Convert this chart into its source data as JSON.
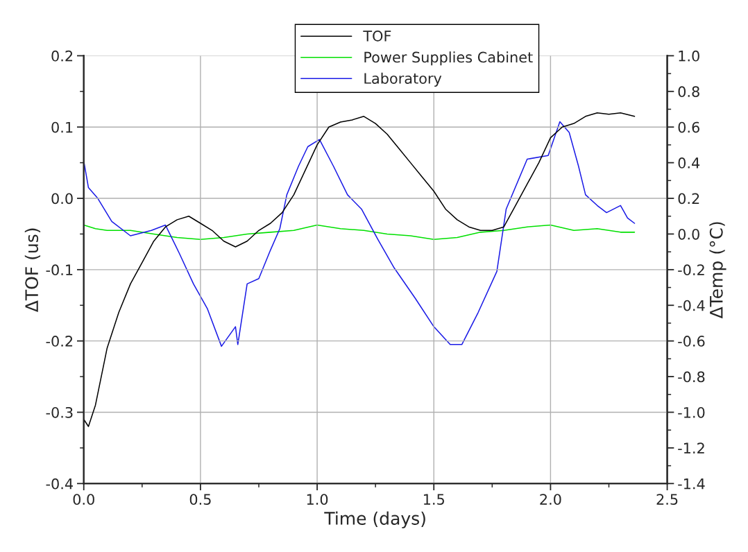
{
  "chart_data": {
    "type": "line",
    "xlabel": "Time (days)",
    "ylabel": "ΔTOF (us)",
    "y2label": "ΔTemp (°C)",
    "xlim": [
      0.0,
      2.5
    ],
    "xticks": [
      {
        "value": 0,
        "label": "0.0"
      },
      0.5,
      {
        "value": 1,
        "label": "1.0"
      },
      1.5,
      {
        "value": 2,
        "label": "2.0"
      },
      2.5
    ],
    "ylim": [
      -0.4,
      0.2
    ],
    "yticks": [
      -0.4,
      -0.3,
      -0.2,
      -0.1,
      {
        "value": 0,
        "label": "0.0"
      },
      0.1,
      0.2
    ],
    "y2lim": [
      -1.4,
      1.0
    ],
    "y2ticks": [
      -1.4,
      -1.2,
      {
        "value": -1,
        "label": "-1.0"
      },
      -0.8,
      -0.6,
      -0.4,
      -0.2,
      {
        "value": 0,
        "label": "0.0"
      },
      0.2,
      0.4,
      0.6,
      0.8,
      {
        "value": 1,
        "label": "1.0"
      }
    ],
    "grid": true,
    "legend": "top right",
    "marker": "none",
    "line_style": "solid",
    "series": [
      {
        "name": "TOF",
        "color": "#000000",
        "x": [
          0.0,
          0.02,
          0.05,
          0.1,
          0.15,
          0.2,
          0.25,
          0.3,
          0.35,
          0.4,
          0.45,
          0.5,
          0.55,
          0.6,
          0.65,
          0.7,
          0.75,
          0.8,
          0.85,
          0.9,
          0.95,
          1.0,
          1.05,
          1.1,
          1.15,
          1.2,
          1.25,
          1.3,
          1.35,
          1.4,
          1.45,
          1.5,
          1.55,
          1.6,
          1.65,
          1.7,
          1.75,
          1.8,
          1.85,
          1.9,
          1.95,
          2.0,
          2.05,
          2.1,
          2.15,
          2.2,
          2.25,
          2.3,
          2.36
        ],
        "values": [
          -0.31,
          -0.32,
          -0.29,
          -0.21,
          -0.16,
          -0.12,
          -0.09,
          -0.06,
          -0.04,
          -0.03,
          -0.025,
          -0.035,
          -0.045,
          -0.06,
          -0.068,
          -0.06,
          -0.045,
          -0.035,
          -0.02,
          0.005,
          0.04,
          0.075,
          0.1,
          0.107,
          0.11,
          0.115,
          0.105,
          0.09,
          0.07,
          0.05,
          0.03,
          0.01,
          -0.015,
          -0.03,
          -0.04,
          -0.045,
          -0.045,
          -0.04,
          -0.01,
          0.02,
          0.05,
          0.085,
          0.1,
          0.105,
          0.115,
          0.12,
          0.118,
          0.12,
          0.115
        ]
      },
      {
        "name": "Power Supplies Cabinet",
        "color": "#00e000",
        "axis": "y2",
        "x": [
          0.0,
          0.05,
          0.1,
          0.2,
          0.3,
          0.4,
          0.5,
          0.6,
          0.7,
          0.8,
          0.9,
          1.0,
          1.1,
          1.2,
          1.3,
          1.4,
          1.5,
          1.6,
          1.7,
          1.8,
          1.9,
          2.0,
          2.1,
          2.2,
          2.3,
          2.36
        ],
        "values": [
          0.05,
          0.03,
          0.02,
          0.02,
          0.0,
          -0.02,
          -0.03,
          -0.02,
          0.0,
          0.01,
          0.02,
          0.05,
          0.03,
          0.02,
          0.0,
          -0.01,
          -0.03,
          -0.02,
          0.01,
          0.02,
          0.04,
          0.05,
          0.02,
          0.03,
          0.01,
          0.01
        ]
      },
      {
        "name": "Laboratory",
        "color": "#1a1ae6",
        "axis": "y2",
        "x": [
          0.0,
          0.02,
          0.06,
          0.12,
          0.2,
          0.29,
          0.35,
          0.41,
          0.47,
          0.53,
          0.59,
          0.65,
          0.66,
          0.7,
          0.75,
          0.8,
          0.84,
          0.87,
          0.92,
          0.96,
          1.01,
          1.07,
          1.13,
          1.19,
          1.26,
          1.33,
          1.42,
          1.5,
          1.57,
          1.62,
          1.69,
          1.77,
          1.81,
          1.9,
          1.99,
          2.04,
          2.08,
          2.12,
          2.15,
          2.2,
          2.24,
          2.3,
          2.33,
          2.36
        ],
        "values": [
          0.41,
          0.26,
          0.2,
          0.07,
          -0.01,
          0.02,
          0.05,
          -0.11,
          -0.28,
          -0.42,
          -0.63,
          -0.52,
          -0.62,
          -0.28,
          -0.25,
          -0.09,
          0.03,
          0.22,
          0.38,
          0.49,
          0.53,
          0.38,
          0.22,
          0.14,
          -0.03,
          -0.19,
          -0.36,
          -0.52,
          -0.62,
          -0.62,
          -0.44,
          -0.21,
          0.14,
          0.42,
          0.44,
          0.63,
          0.57,
          0.38,
          0.22,
          0.16,
          0.12,
          0.16,
          0.09,
          0.06
        ]
      }
    ]
  }
}
